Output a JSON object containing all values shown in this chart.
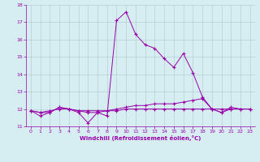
{
  "xlabel": "Windchill (Refroidissement éolien,°C)",
  "background_color": "#d6eef2",
  "line_color": "#9900aa",
  "grid_color": "#b0c8cc",
  "xlim": [
    -0.5,
    23.5
  ],
  "ylim": [
    11.0,
    18.0
  ],
  "yticks": [
    11,
    12,
    13,
    14,
    15,
    16,
    17,
    18
  ],
  "xticks": [
    0,
    1,
    2,
    3,
    4,
    5,
    6,
    7,
    8,
    9,
    10,
    11,
    12,
    13,
    14,
    15,
    16,
    17,
    18,
    19,
    20,
    21,
    22,
    23
  ],
  "series": [
    {
      "x": [
        0,
        1,
        2,
        3,
        4,
        5,
        6,
        7,
        8,
        9,
        10,
        11,
        12,
        13,
        14,
        15,
        16,
        17,
        18,
        19,
        20,
        21,
        22,
        23
      ],
      "y": [
        11.9,
        11.6,
        11.8,
        12.1,
        12.0,
        11.8,
        11.2,
        11.8,
        11.6,
        17.1,
        17.6,
        16.3,
        15.7,
        15.5,
        14.9,
        14.4,
        15.2,
        14.1,
        12.7,
        12.0,
        11.8,
        12.1,
        12.0,
        12.0
      ]
    },
    {
      "x": [
        0,
        1,
        2,
        3,
        4,
        5,
        6,
        7,
        8,
        9,
        10,
        11,
        12,
        13,
        14,
        15,
        16,
        17,
        18,
        19,
        20,
        21,
        22,
        23
      ],
      "y": [
        11.9,
        11.8,
        11.8,
        12.1,
        12.0,
        11.9,
        11.8,
        11.8,
        11.9,
        12.0,
        12.1,
        12.2,
        12.2,
        12.3,
        12.3,
        12.3,
        12.4,
        12.5,
        12.6,
        12.0,
        11.8,
        12.0,
        12.0,
        12.0
      ]
    },
    {
      "x": [
        0,
        1,
        2,
        3,
        4,
        5,
        6,
        7,
        8,
        9,
        10,
        11,
        12,
        13,
        14,
        15,
        16,
        17,
        18,
        19,
        20,
        21,
        22,
        23
      ],
      "y": [
        11.9,
        11.8,
        11.9,
        12.0,
        12.0,
        11.9,
        11.9,
        11.9,
        11.9,
        11.9,
        12.0,
        12.0,
        12.0,
        12.0,
        12.0,
        12.0,
        12.0,
        12.0,
        12.0,
        12.0,
        12.0,
        12.0,
        12.0,
        12.0
      ]
    }
  ]
}
